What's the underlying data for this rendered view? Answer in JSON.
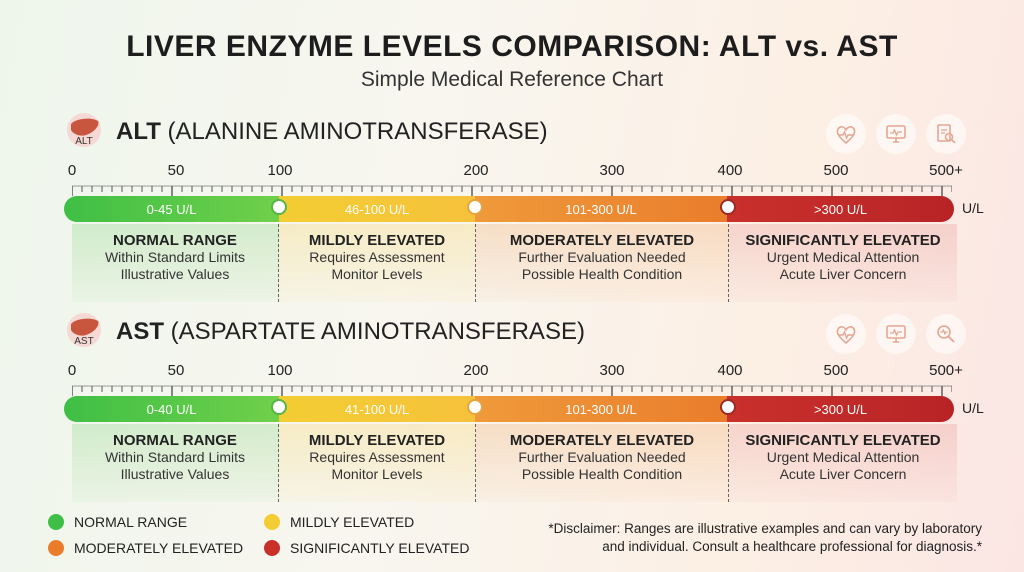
{
  "title": "LIVER ENZYME LEVELS COMPARISON: ALT vs. AST",
  "subtitle": "Simple Medical Reference Chart",
  "unit": "U/L",
  "ticks": [
    "0",
    "50",
    "100",
    "200",
    "300",
    "400",
    "500",
    "500+"
  ],
  "colors": {
    "normal": "#3fbf45",
    "mild": "#f3cd33",
    "moderate": "#ea7d2c",
    "significant": "#c9302c"
  },
  "categories": [
    {
      "head": "NORMAL RANGE",
      "line1": "Within Standard Limits",
      "line2": "Illustrative Values"
    },
    {
      "head": "MILDLY ELEVATED",
      "line1": "Requires Assessment",
      "line2": "Monitor Levels"
    },
    {
      "head": "MODERATELY ELEVATED",
      "line1": "Further Evaluation Needed",
      "line2": "Possible Health Condition"
    },
    {
      "head": "SIGNIFICANTLY ELEVATED",
      "line1": "Urgent Medical Attention",
      "line2": "Acute Liver Concern"
    }
  ],
  "alt": {
    "tag": "ALT",
    "abbr": "ALT",
    "full": " (ALANINE AMINOTRANSFERASE)",
    "ranges": [
      "0-45 U/L",
      "46-100 U/L",
      "101-300 U/L",
      ">300 U/L"
    ]
  },
  "ast": {
    "tag": "AST",
    "abbr": "AST",
    "full": " (ASPARTATE AMINOTRANSFERASE)",
    "ranges": [
      "0-40 U/L",
      "41-100 U/L",
      "101-300 U/L",
      ">300 U/L"
    ]
  },
  "legend": [
    "NORMAL RANGE",
    "MILDLY ELEVATED",
    "MODERATELY ELEVATED",
    "SIGNIFICANTLY ELEVATED"
  ],
  "disclaimer": {
    "line1": "*Disclaimer: Ranges are illustrative examples and can vary by laboratory",
    "line2": "and individual. Consult a healthcare professional for diagnosis.*"
  },
  "icons": [
    "liver-icon",
    "heart-pulse-icon",
    "monitor-icon",
    "lab-report-icon"
  ]
}
